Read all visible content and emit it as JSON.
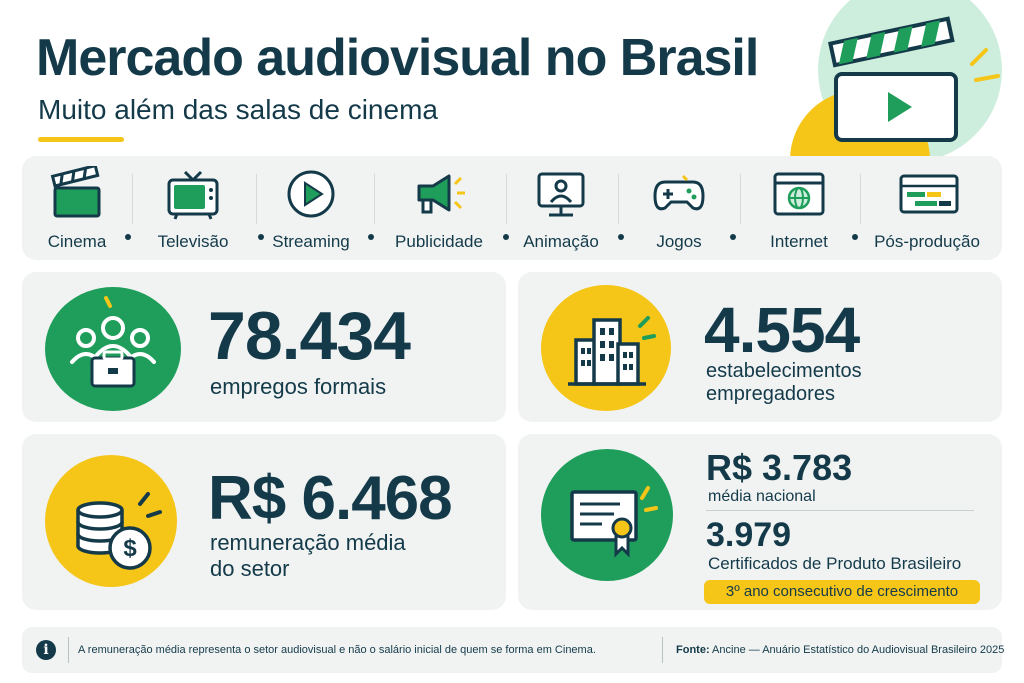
{
  "header": {
    "title": "Mercado audiovisual no Brasil",
    "subtitle": "Muito além das salas de cinema"
  },
  "sectors": [
    {
      "label": "Cinema",
      "icon": "clapperboard-icon"
    },
    {
      "label": "Televisão",
      "icon": "television-icon"
    },
    {
      "label": "Streaming",
      "icon": "play-circle-icon"
    },
    {
      "label": "Publicidade",
      "icon": "megaphone-icon"
    },
    {
      "label": "Animação",
      "icon": "monitor-person-icon"
    },
    {
      "label": "Jogos",
      "icon": "gamepad-icon"
    },
    {
      "label": "Internet",
      "icon": "browser-globe-icon"
    },
    {
      "label": "Pós-produção",
      "icon": "timeline-editor-icon"
    }
  ],
  "stats": {
    "jobs": {
      "value": "78.434",
      "label": "empregos formais",
      "icon": "team-briefcase-icon"
    },
    "establishments": {
      "value": "4.554",
      "label_line1": "estabelecimentos",
      "label_line2": "empregadores",
      "icon": "buildings-icon"
    },
    "salary": {
      "value": "R$ 6.468",
      "label_line1": "remuneração média",
      "label_line2": "do setor",
      "icon": "coins-dollar-icon"
    },
    "national": {
      "value": "R$ 3.783",
      "label": "média nacional"
    },
    "certificates": {
      "value": "3.979",
      "label": "Certificados de Produto Brasileiro",
      "badge": "3º ano consecutivo de crescimento",
      "icon": "certificate-icon"
    }
  },
  "footer": {
    "note": "A remuneração média representa o setor audiovisual e não o salário inicial de quem se forma em Cinema.",
    "source_label": "Fonte:",
    "source_text": " Ancine — Anuário Estatístico do Audiovisual Brasileiro 2025"
  },
  "colors": {
    "navy": "#143a4a",
    "green": "#1f9e5b",
    "yellow": "#f5c518",
    "panel": "#f0f3f2"
  }
}
